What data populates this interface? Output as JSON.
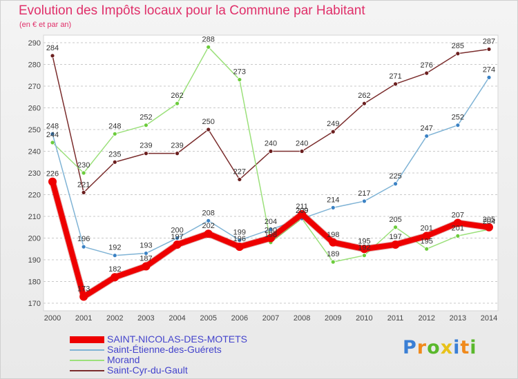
{
  "chart_data": {
    "type": "line",
    "title": "Evolution des Impôts locaux pour la Commune par Habitant",
    "subtitle": "(en € et par an)",
    "xlabel": "",
    "ylabel": "",
    "x": [
      "2000",
      "2001",
      "2002",
      "2003",
      "2004",
      "2005",
      "2006",
      "2007",
      "2008",
      "2009",
      "2010",
      "2011",
      "2012",
      "2013",
      "2014"
    ],
    "ylim": [
      170,
      290
    ],
    "yticks": [
      170,
      180,
      190,
      200,
      210,
      220,
      230,
      240,
      250,
      260,
      270,
      280,
      290
    ],
    "grid": "horizontal dashed",
    "legend_position": "bottom-left",
    "series": [
      {
        "name": "SAINT-NICOLAS-DES-MOTETS",
        "color": "#ee0000",
        "marker": "#ee0000",
        "width": 8,
        "values": [
          226,
          173,
          182,
          187,
          197,
          202,
          196,
          200,
          211,
          198,
          195,
          197,
          201,
          207,
          205
        ],
        "labels": [
          "226",
          "173",
          "182",
          "187",
          "197",
          "202",
          "196",
          "200",
          "211",
          "198",
          "195",
          "197",
          "201",
          "207",
          "205"
        ]
      },
      {
        "name": "Saint-Étienne-des-Guérets",
        "color": "#7fb3d5",
        "marker": "#3b82c4",
        "width": 1.5,
        "values": [
          248,
          196,
          192,
          193,
          200,
          208,
          199,
          204,
          209,
          214,
          217,
          225,
          247,
          252,
          274
        ],
        "labels": [
          "248",
          "196",
          "192",
          "193",
          "200",
          "208",
          "199",
          "204",
          "209",
          "214",
          "217",
          "225",
          "247",
          "252",
          "274"
        ]
      },
      {
        "name": "Morand",
        "color": "#9be07a",
        "marker": "#6ccc3c",
        "width": 1.5,
        "values": [
          244,
          230,
          248,
          252,
          262,
          288,
          273,
          198,
          209,
          189,
          192,
          205,
          195,
          201,
          204
        ],
        "labels": [
          "244",
          "230",
          "248",
          "252",
          "262",
          "288",
          "273",
          "198",
          "209",
          "189",
          "192",
          "205",
          "195",
          "201",
          "204"
        ]
      },
      {
        "name": "Saint-Cyr-du-Gault",
        "color": "#7a2c2c",
        "marker": "#6b1f1f",
        "width": 1.5,
        "values": [
          284,
          221,
          235,
          239,
          239,
          250,
          227,
          240,
          240,
          249,
          262,
          271,
          276,
          285,
          287
        ],
        "labels": [
          "284",
          "221",
          "235",
          "239",
          "239",
          "250",
          "227",
          "240",
          "240",
          "249",
          "262",
          "271",
          "276",
          "285",
          "287"
        ]
      }
    ]
  },
  "logo": {
    "letters": [
      "P",
      "r",
      "o",
      "x",
      "i",
      "t",
      "i"
    ],
    "colors": [
      "#3a7fd5",
      "#f08a1c",
      "#5ab82c",
      "#e8c21a",
      "#3a7fd5",
      "#f08a1c",
      "#5ab82c"
    ]
  }
}
